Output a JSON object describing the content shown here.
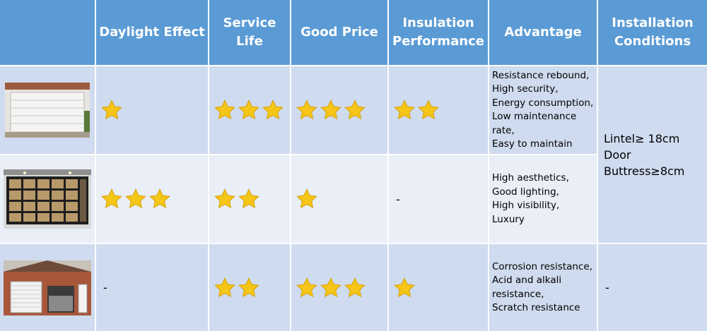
{
  "headers": [
    "",
    "Daylight Effect",
    "Service\nLife",
    "Good Price",
    "Insulation\nPerformance",
    "Advantage",
    "Installation\nConditions"
  ],
  "rows": [
    {
      "image": "white-sectional-garage-door",
      "daylight": 1,
      "service_life": 3,
      "price": 3,
      "insulation": 2,
      "daylight_text": "",
      "insulation_text": "",
      "price_text": "",
      "advantage": "Resistance rebound,\nHigh security,\nEnergy consumption,\nLow maintenance\nrate,\nEasy to maintain"
    },
    {
      "image": "glass-panel-garage-door",
      "daylight": 3,
      "service_life": 2,
      "price": 1,
      "insulation": 0,
      "daylight_text": "",
      "insulation_text": "-",
      "price_text": "",
      "advantage": "High aesthetics,\nGood lighting,\nHigh visibility,\nLuxury"
    },
    {
      "image": "roller-shutter-garage-door",
      "daylight": 0,
      "service_life": 2,
      "price": 3,
      "insulation": 1,
      "daylight_text": "-",
      "insulation_text": "",
      "price_text": "",
      "advantage": "Corrosion resistance,\nAcid and alkali\nresistance,\nScratch resistance"
    }
  ],
  "installation_merged": "Lintel≥ 18cm\nDoor\nButtress≥8cm",
  "installation_row3": "-",
  "colors": {
    "header": "#5b9bd5",
    "row_dark": "#cfdbee",
    "row_light": "#e9eef7",
    "star": "#f5c518"
  }
}
